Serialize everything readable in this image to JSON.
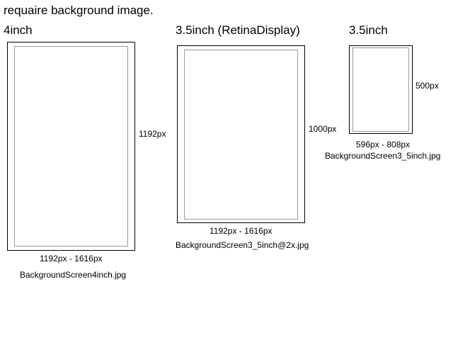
{
  "title": "requaire background image.",
  "screens": [
    {
      "label": "4inch",
      "height_label": "1192px",
      "size_label": "1192px - 1616px",
      "filename": "BackgroundScreen4inch.jpg"
    },
    {
      "label": "3.5inch (RetinaDisplay)",
      "height_label": "1000px",
      "size_label": "1192px - 1616px",
      "filename": "BackgroundScreen3_5inch@2x.jpg"
    },
    {
      "label": "3.5inch",
      "height_label": "500px",
      "size_label": "596px - 808px",
      "filename": "BackgroundScreen3_5inch.jpg"
    }
  ],
  "colors": {
    "outer_border": "#000000",
    "inner_border": "#9a9a9a"
  }
}
